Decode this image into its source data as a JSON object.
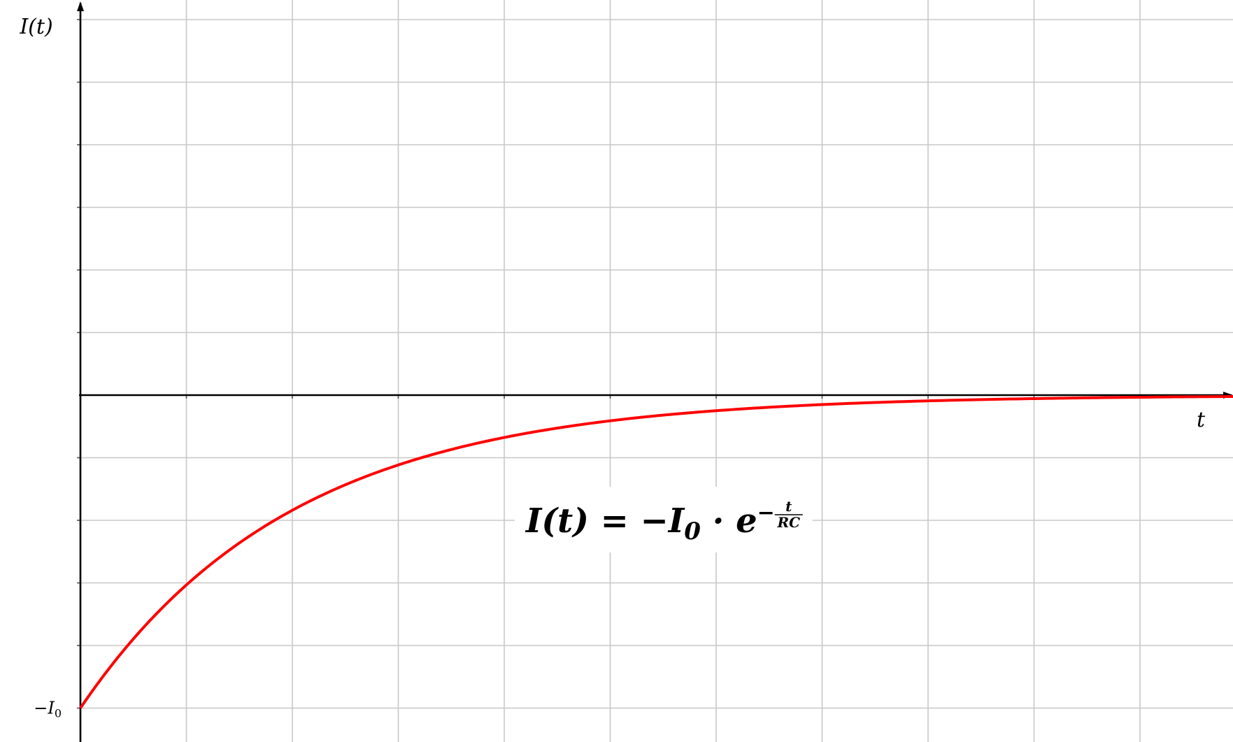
{
  "chart_data": {
    "type": "line",
    "title": "",
    "xlabel": "t",
    "ylabel": "I(t)",
    "y_tick_labels": [
      {
        "value": -5,
        "label": "−I",
        "subscript": "0"
      }
    ],
    "xlim": [
      0,
      11.6
    ],
    "ylim": [
      -5.5,
      6.3
    ],
    "x_ticks": [
      0,
      1,
      2,
      3,
      4,
      5,
      6,
      7,
      8,
      9,
      10,
      11
    ],
    "y_ticks": [
      -5,
      -4,
      -3,
      -2,
      -1,
      0,
      1,
      2,
      3,
      4,
      5,
      6
    ],
    "grid": true,
    "series": [
      {
        "color": "#ff0000",
        "function": "-I0 * exp(-t/RC)",
        "I0": 5,
        "RC": 2,
        "x_range": [
          0,
          11.6
        ]
      }
    ],
    "annotation": {
      "text": "I(t) = −I",
      "subscript": "0",
      "operator": "·",
      "base": "e",
      "exponent_sign": "−",
      "exponent_numerator": "t",
      "exponent_denominator": "RC",
      "x": 4.6,
      "y": -2
    }
  }
}
